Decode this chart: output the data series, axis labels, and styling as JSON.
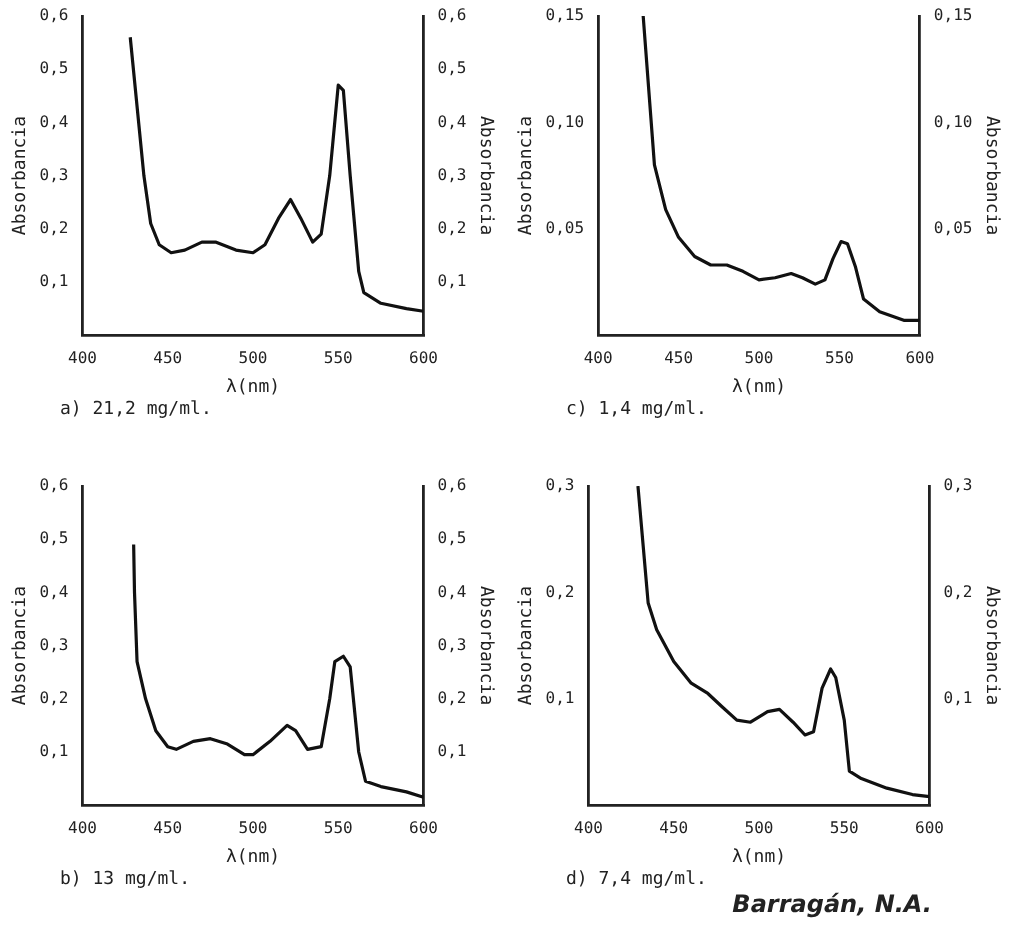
{
  "chart_data": [
    {
      "type": "line",
      "xlabel": "λ(nm)",
      "ylabel": "Absorbancia",
      "y2label": "Absorbancia",
      "xlim": [
        400,
        600
      ],
      "xticks": [
        400,
        450,
        500,
        550,
        600
      ],
      "ylim": [
        0,
        0.6
      ],
      "yticks": [
        {
          "value": 0.1,
          "label": "0,1"
        },
        {
          "value": 0.2,
          "label": "0,2"
        },
        {
          "value": 0.3,
          "label": "0,3"
        },
        {
          "value": 0.4,
          "label": "0,4"
        },
        {
          "value": 0.5,
          "label": "0,5"
        },
        {
          "value": 0.6,
          "label": "0,6"
        }
      ],
      "y2lim": [
        0,
        0.6
      ],
      "y2ticks": [
        {
          "value": 0.1,
          "label": "0,1"
        },
        {
          "value": 0.2,
          "label": "0,2"
        },
        {
          "value": 0.3,
          "label": "0,3"
        },
        {
          "value": 0.4,
          "label": "0,4"
        },
        {
          "value": 0.5,
          "label": "0,5"
        },
        {
          "value": 0.6,
          "label": "0,6"
        }
      ],
      "series": [
        {
          "color": "#111111",
          "x": [
            428,
            436,
            440,
            445,
            452,
            460,
            470,
            478,
            490,
            500,
            507,
            515,
            522,
            528,
            535,
            540,
            545,
            550,
            553,
            557,
            562,
            565,
            575,
            590,
            600
          ],
          "values": [
            0.56,
            0.3,
            0.21,
            0.17,
            0.155,
            0.16,
            0.175,
            0.175,
            0.16,
            0.155,
            0.17,
            0.22,
            0.255,
            0.22,
            0.175,
            0.19,
            0.3,
            0.47,
            0.46,
            0.3,
            0.12,
            0.08,
            0.06,
            0.05,
            0.045
          ]
        }
      ],
      "annotations": [
        "a) 21,2 mg/ml."
      ]
    },
    {
      "type": "line",
      "xlabel": "λ(nm)",
      "ylabel": "Absorbancia",
      "y2label": "Absorbancia",
      "xlim": [
        400,
        600
      ],
      "xticks": [
        400,
        450,
        500,
        550,
        600
      ],
      "ylim": [
        0,
        0.15
      ],
      "yticks": [
        {
          "value": 0.05,
          "label": "0,05"
        },
        {
          "value": 0.1,
          "label": "0,10"
        },
        {
          "value": 0.15,
          "label": "0,15"
        }
      ],
      "y2lim": [
        0,
        0.15
      ],
      "y2ticks": [
        {
          "value": 0.05,
          "label": "0,05"
        },
        {
          "value": 0.1,
          "label": "0,10"
        },
        {
          "value": 0.15,
          "label": "0,15"
        }
      ],
      "series": [
        {
          "color": "#111111",
          "x": [
            428,
            435,
            442,
            450,
            460,
            470,
            480,
            490,
            500,
            510,
            520,
            527,
            535,
            541,
            546,
            551,
            555,
            560,
            565,
            575,
            590,
            600
          ],
          "values": [
            0.15,
            0.08,
            0.059,
            0.046,
            0.037,
            0.033,
            0.033,
            0.03,
            0.026,
            0.027,
            0.029,
            0.027,
            0.024,
            0.026,
            0.036,
            0.044,
            0.043,
            0.032,
            0.017,
            0.011,
            0.007,
            0.007
          ]
        }
      ],
      "annotations": [
        "c) 1,4 mg/ml."
      ]
    },
    {
      "type": "line",
      "xlabel": "λ(nm)",
      "ylabel": "Absorbancia",
      "y2label": "Absorbancia",
      "xlim": [
        400,
        600
      ],
      "xticks": [
        400,
        450,
        500,
        550,
        600
      ],
      "ylim": [
        0,
        0.6
      ],
      "yticks": [
        {
          "value": 0.1,
          "label": "0,1"
        },
        {
          "value": 0.2,
          "label": "0,2"
        },
        {
          "value": 0.3,
          "label": "0,3"
        },
        {
          "value": 0.4,
          "label": "0,4"
        },
        {
          "value": 0.5,
          "label": "0,5"
        },
        {
          "value": 0.6,
          "label": "0,6"
        }
      ],
      "y2lim": [
        0,
        0.6
      ],
      "y2ticks": [
        {
          "value": 0.1,
          "label": "0,1"
        },
        {
          "value": 0.2,
          "label": "0,2"
        },
        {
          "value": 0.3,
          "label": "0,3"
        },
        {
          "value": 0.4,
          "label": "0,4"
        },
        {
          "value": 0.5,
          "label": "0,5"
        },
        {
          "value": 0.6,
          "label": "0,6"
        }
      ],
      "series": [
        {
          "color": "#111111",
          "x": [
            430,
            430.5,
            432,
            437,
            443,
            450,
            455,
            465,
            475,
            485,
            495,
            500,
            510,
            520,
            525,
            532,
            540,
            545,
            548,
            553,
            557,
            562,
            566,
            575,
            590,
            600
          ],
          "values": [
            0.49,
            0.4,
            0.27,
            0.2,
            0.14,
            0.11,
            0.105,
            0.12,
            0.125,
            0.115,
            0.095,
            0.095,
            0.12,
            0.15,
            0.14,
            0.105,
            0.11,
            0.2,
            0.27,
            0.28,
            0.26,
            0.1,
            0.045,
            0.035,
            0.025,
            0.015
          ]
        }
      ],
      "annotations": [
        "b) 13 mg/ml."
      ]
    },
    {
      "type": "line",
      "xlabel": "λ(nm)",
      "ylabel": "Absorbancia",
      "y2label": "Absorbancia",
      "xlim": [
        400,
        600
      ],
      "xticks": [
        400,
        450,
        500,
        550,
        600
      ],
      "ylim": [
        0,
        0.3
      ],
      "yticks": [
        {
          "value": 0.1,
          "label": "0,1"
        },
        {
          "value": 0.2,
          "label": "0,2"
        },
        {
          "value": 0.3,
          "label": "0,3"
        }
      ],
      "y2lim": [
        0,
        0.3
      ],
      "y2ticks": [
        {
          "value": 0.1,
          "label": "0,1"
        },
        {
          "value": 0.2,
          "label": "0,2"
        },
        {
          "value": 0.3,
          "label": "0,3"
        }
      ],
      "series": [
        {
          "color": "#111111",
          "x": [
            429,
            435,
            440,
            450,
            460,
            470,
            478,
            487,
            495,
            505,
            512,
            520,
            527,
            532,
            537,
            542,
            545,
            550,
            553,
            560,
            575,
            590,
            600
          ],
          "values": [
            0.3,
            0.19,
            0.165,
            0.135,
            0.115,
            0.105,
            0.093,
            0.08,
            0.078,
            0.088,
            0.09,
            0.078,
            0.066,
            0.069,
            0.11,
            0.128,
            0.12,
            0.08,
            0.032,
            0.025,
            0.016,
            0.01,
            0.008
          ]
        }
      ],
      "annotations": [
        "d) 7,4 mg/ml.",
        "Barragán, N.A."
      ]
    }
  ]
}
